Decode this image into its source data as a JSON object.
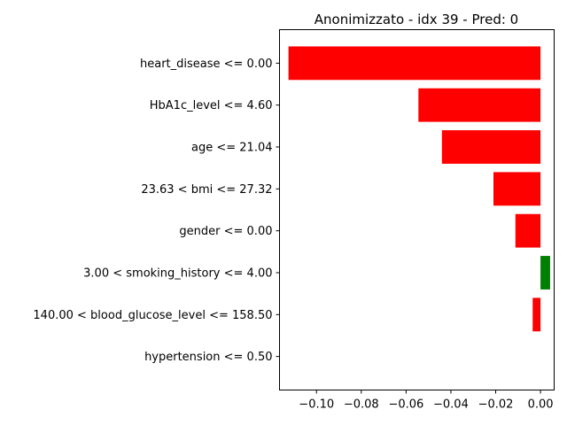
{
  "chart_data": {
    "type": "bar",
    "orientation": "horizontal",
    "title": "Anonimizzato - idx 39 - Pred: 0",
    "xlabel": "",
    "ylabel": "",
    "xlim": [
      -0.1165,
      0.0061
    ],
    "categories": [
      "heart_disease <= 0.00",
      "HbA1c_level <= 4.60",
      "age <= 21.04",
      "23.63 < bmi <= 27.32",
      "gender <= 0.00",
      "3.00 < smoking_history <= 4.00",
      "140.00 < blood_glucose_level <= 158.50",
      "hypertension <= 0.50"
    ],
    "values": [
      -0.1125,
      -0.0545,
      -0.044,
      -0.021,
      -0.0112,
      0.0043,
      -0.0035,
      0.0
    ],
    "x_ticks": [
      -0.1,
      -0.08,
      -0.06,
      -0.04,
      -0.02,
      0.0
    ],
    "x_tick_labels": [
      "−0.10",
      "−0.08",
      "−0.06",
      "−0.04",
      "−0.02",
      "0.00"
    ],
    "colors": {
      "negative": "#ff0000",
      "positive": "#008000"
    },
    "grid": false,
    "legend": "none"
  }
}
